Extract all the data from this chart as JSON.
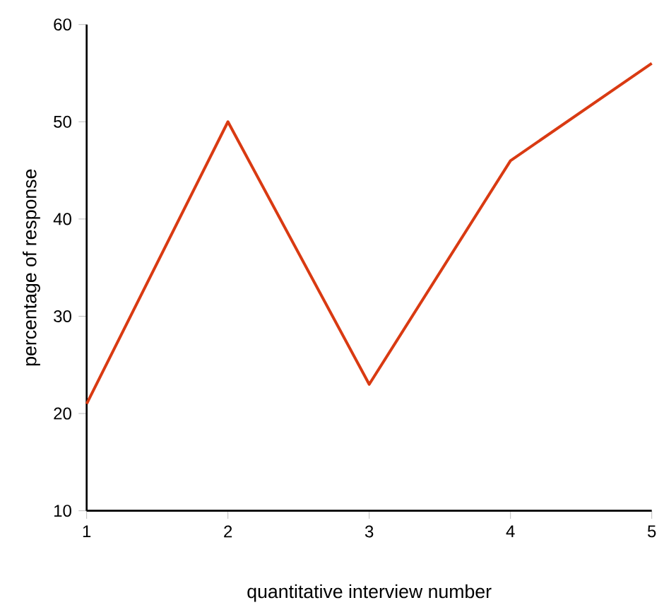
{
  "chart_data": {
    "type": "line",
    "xlabel": "quantitative interview number",
    "ylabel": "percentage of response",
    "x": [
      1,
      2,
      3,
      4,
      5
    ],
    "series": [
      {
        "color": "#d93a12",
        "values": [
          21,
          50,
          23,
          46,
          56
        ]
      }
    ],
    "xlim": [
      1,
      5
    ],
    "ylim": [
      10,
      60
    ],
    "xticks": [
      1,
      2,
      3,
      4,
      5
    ],
    "yticks": [
      10,
      20,
      30,
      40,
      50,
      60
    ],
    "grid": false,
    "marker": "none",
    "line_style": "solid"
  }
}
